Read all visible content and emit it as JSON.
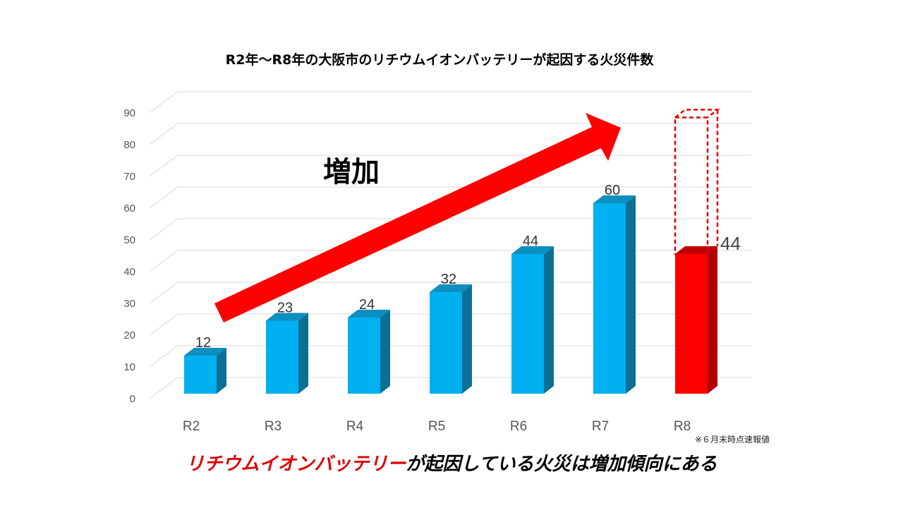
{
  "chart_data": {
    "type": "bar",
    "title": "R2年～R8年の大阪市のリチウムイオンバッテリーが起因する火災件数",
    "xlabel": "",
    "ylabel": "",
    "categories": [
      "R2",
      "R3",
      "R4",
      "R5",
      "R6",
      "R7",
      "R8"
    ],
    "series": [
      {
        "values": [
          12,
          23,
          24,
          32,
          44,
          60,
          44
        ]
      }
    ],
    "data_labels": [
      "12",
      "23",
      "24",
      "32",
      "44",
      "60",
      "44"
    ],
    "highlighted_category": "R8",
    "projected_outline_max": 87,
    "ylim": [
      0,
      90
    ],
    "yticks": [
      "0",
      "10",
      "20",
      "30",
      "40",
      "50",
      "60",
      "70",
      "80",
      "90"
    ],
    "grid": true,
    "style": "3d",
    "colors": {
      "bar": "#00b0f0",
      "highlight": "#ff0000",
      "arrow": "#ff0000"
    },
    "annotation": "増加",
    "note": "※６月末時点速報値"
  },
  "caption": {
    "red_part": "リチウムイオンバッテリー",
    "rest": "が起因している火災は増加傾向にある"
  }
}
